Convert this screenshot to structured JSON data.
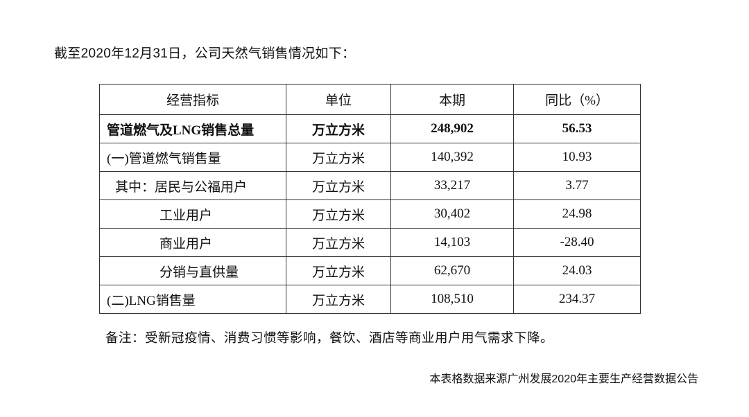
{
  "intro": "截至2020年12月31日，公司天然气销售情况如下：",
  "table": {
    "headers": [
      "经营指标",
      "单位",
      "本期",
      "同比（%）"
    ],
    "rows": [
      {
        "label": "管道燃气及LNG销售总量",
        "unit": "万立方米",
        "value": "248,902",
        "yoy": "56.53"
      },
      {
        "label": "(一)管道燃气销售量",
        "unit": "万立方米",
        "value": "140,392",
        "yoy": "10.93"
      },
      {
        "label": "其中：居民与公福用户",
        "unit": "万立方米",
        "value": "33,217",
        "yoy": "3.77"
      },
      {
        "label": "工业用户",
        "unit": "万立方米",
        "value": "30,402",
        "yoy": "24.98"
      },
      {
        "label": "商业用户",
        "unit": "万立方米",
        "value": "14,103",
        "yoy": "-28.40"
      },
      {
        "label": "分销与直供量",
        "unit": "万立方米",
        "value": "62,670",
        "yoy": "24.03"
      },
      {
        "label": "(二)LNG销售量",
        "unit": "万立方米",
        "value": "108,510",
        "yoy": "234.37"
      }
    ]
  },
  "note": "备注：受新冠疫情、消费习惯等影响，餐饮、酒店等商业用户用气需求下降。",
  "source": "本表格数据来源广州发展2020年主要生产经营数据公告"
}
